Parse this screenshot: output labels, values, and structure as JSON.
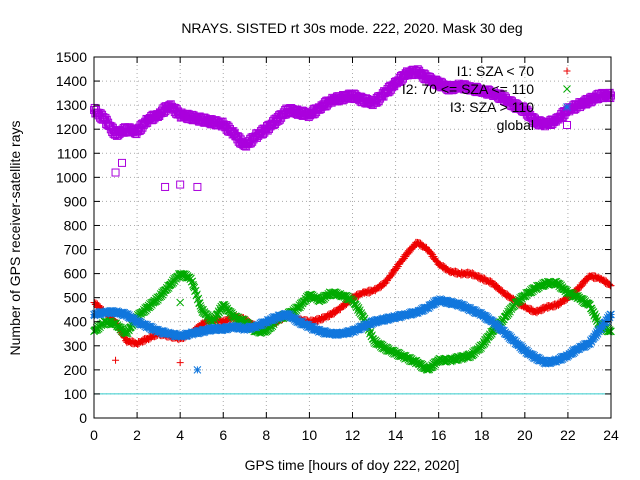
{
  "chart_data": {
    "type": "scatter",
    "title": "NRAYS. SISTED rt 30s mode. 222, 2020. Mask 30 deg",
    "xlabel": "GPS time [hours of doy 222, 2020]",
    "ylabel": "Number of GPS receiver-satellite rays",
    "xlim": [
      0,
      24
    ],
    "ylim": [
      0,
      1500
    ],
    "xticks": [
      0,
      2,
      4,
      6,
      8,
      10,
      12,
      14,
      16,
      18,
      20,
      22,
      24
    ],
    "yticks": [
      0,
      100,
      200,
      300,
      400,
      500,
      600,
      700,
      800,
      900,
      1000,
      1100,
      1200,
      1300,
      1400,
      1500
    ],
    "grid": true,
    "legend_position": "top-right",
    "reference_line": {
      "y": 100,
      "color": "#33cccc"
    },
    "series": [
      {
        "name": "I1: SZA < 70",
        "marker": "+",
        "color": "#ee0000",
        "x": [
          0,
          0.5,
          1,
          1.5,
          2,
          2.5,
          3,
          3.5,
          4,
          4.5,
          5,
          5.5,
          6,
          6.5,
          7,
          7.5,
          8,
          8.5,
          9,
          9.5,
          10,
          10.5,
          11,
          11.5,
          12,
          12.5,
          13,
          13.5,
          14,
          14.5,
          15,
          15.5,
          16,
          16.5,
          17,
          17.5,
          18,
          18.5,
          19,
          19.5,
          20,
          20.5,
          21,
          21.5,
          22,
          22.5,
          23,
          23.5,
          24
        ],
        "y": [
          480,
          440,
          400,
          320,
          310,
          330,
          350,
          340,
          330,
          350,
          390,
          410,
          400,
          420,
          410,
          380,
          380,
          400,
          430,
          410,
          400,
          410,
          430,
          460,
          500,
          520,
          530,
          560,
          620,
          680,
          730,
          700,
          640,
          610,
          600,
          600,
          580,
          560,
          520,
          490,
          460,
          440,
          460,
          470,
          500,
          540,
          590,
          580,
          550
        ]
      },
      {
        "name": "I2: 70 <= SZA <= 110",
        "marker": "x",
        "color": "#00aa00",
        "x": [
          0,
          0.5,
          1,
          1.5,
          2,
          2.5,
          3,
          3.5,
          4,
          4.5,
          5,
          5.5,
          6,
          6.5,
          7,
          7.5,
          8,
          8.5,
          9,
          9.5,
          10,
          10.5,
          11,
          11.5,
          12,
          12.5,
          13,
          13.5,
          14,
          14.5,
          15,
          15.5,
          16,
          16.5,
          17,
          17.5,
          18,
          18.5,
          19,
          19.5,
          20,
          20.5,
          21,
          21.5,
          22,
          22.5,
          23,
          23.5,
          24
        ],
        "y": [
          360,
          400,
          390,
          350,
          420,
          460,
          500,
          550,
          600,
          580,
          450,
          400,
          470,
          420,
          400,
          360,
          360,
          410,
          430,
          460,
          510,
          490,
          520,
          510,
          490,
          420,
          320,
          290,
          270,
          250,
          230,
          200,
          240,
          240,
          250,
          260,
          300,
          360,
          410,
          470,
          510,
          540,
          560,
          560,
          520,
          500,
          470,
          380,
          360
        ]
      },
      {
        "name": "I3: SZA > 110",
        "marker": "*",
        "color": "#1177dd",
        "x": [
          0,
          0.5,
          1,
          1.5,
          2,
          2.5,
          3,
          3.5,
          4,
          4.5,
          5,
          5.5,
          6,
          6.5,
          7,
          7.5,
          8,
          8.5,
          9,
          9.5,
          10,
          10.5,
          11,
          11.5,
          12,
          12.5,
          13,
          13.5,
          14,
          14.5,
          15,
          15.5,
          16,
          16.5,
          17,
          17.5,
          18,
          18.5,
          19,
          19.5,
          20,
          20.5,
          21,
          21.5,
          22,
          22.5,
          23,
          23.5,
          24
        ],
        "y": [
          430,
          440,
          440,
          430,
          400,
          380,
          360,
          350,
          340,
          350,
          360,
          370,
          370,
          380,
          370,
          380,
          400,
          420,
          430,
          400,
          380,
          360,
          350,
          350,
          360,
          380,
          400,
          410,
          420,
          430,
          440,
          460,
          490,
          480,
          470,
          450,
          430,
          400,
          360,
          320,
          280,
          250,
          230,
          240,
          260,
          290,
          310,
          370,
          430
        ]
      },
      {
        "name": "global",
        "marker": "square",
        "color": "#aa00dd",
        "x": [
          0,
          0.5,
          1,
          1.5,
          2,
          2.5,
          3,
          3.5,
          4,
          4.5,
          5,
          5.5,
          6,
          6.5,
          7,
          7.5,
          8,
          8.5,
          9,
          9.5,
          10,
          10.5,
          11,
          11.5,
          12,
          12.5,
          13,
          13.5,
          14,
          14.5,
          15,
          15.5,
          16,
          16.5,
          17,
          17.5,
          18,
          18.5,
          19,
          19.5,
          20,
          20.5,
          21,
          21.5,
          22,
          22.5,
          23,
          23.5,
          24
        ],
        "y": [
          1280,
          1240,
          1180,
          1200,
          1190,
          1240,
          1260,
          1300,
          1260,
          1250,
          1240,
          1230,
          1220,
          1180,
          1130,
          1170,
          1200,
          1240,
          1280,
          1270,
          1260,
          1290,
          1320,
          1330,
          1340,
          1320,
          1310,
          1350,
          1390,
          1430,
          1440,
          1410,
          1390,
          1370,
          1380,
          1370,
          1360,
          1350,
          1330,
          1300,
          1280,
          1230,
          1220,
          1240,
          1280,
          1300,
          1320,
          1340,
          1340
        ]
      }
    ],
    "outliers": [
      {
        "x": 4.0,
        "y": 970,
        "series": "global"
      },
      {
        "x": 3.3,
        "y": 960,
        "series": "global"
      },
      {
        "x": 4.8,
        "y": 960,
        "series": "global"
      },
      {
        "x": 1.0,
        "y": 1020,
        "series": "global"
      },
      {
        "x": 1.3,
        "y": 1060,
        "series": "global"
      },
      {
        "x": 4.0,
        "y": 480,
        "series": "I2: 70 <= SZA <= 110"
      },
      {
        "x": 1.0,
        "y": 240,
        "series": "I1: SZA < 70"
      },
      {
        "x": 4.0,
        "y": 230,
        "series": "I1: SZA < 70"
      },
      {
        "x": 4.8,
        "y": 200,
        "series": "I3: SZA > 110"
      }
    ]
  }
}
